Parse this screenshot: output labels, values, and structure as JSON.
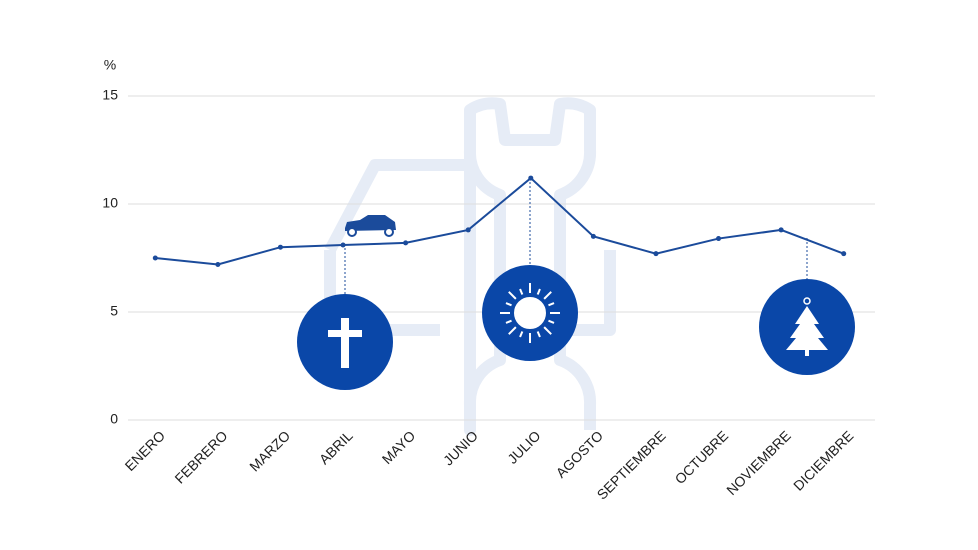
{
  "chart_data": {
    "type": "line",
    "y_label": "%",
    "categories": [
      "ENERO",
      "FEBRERO",
      "MARZO",
      "ABRIL",
      "MAYO",
      "JUNIO",
      "JULIO",
      "AGOSTO",
      "SEPTIEMBRE",
      "OCTUBRE",
      "NOVIEMBRE",
      "DICIEMBRE"
    ],
    "values": [
      7.5,
      7.2,
      8.0,
      8.1,
      8.2,
      8.8,
      11.2,
      8.5,
      7.7,
      8.4,
      8.8,
      7.7
    ],
    "color": "#1b4b9b",
    "ylim": [
      0,
      15
    ],
    "yticks": [
      0,
      5,
      10,
      15
    ],
    "grid": true
  }
}
